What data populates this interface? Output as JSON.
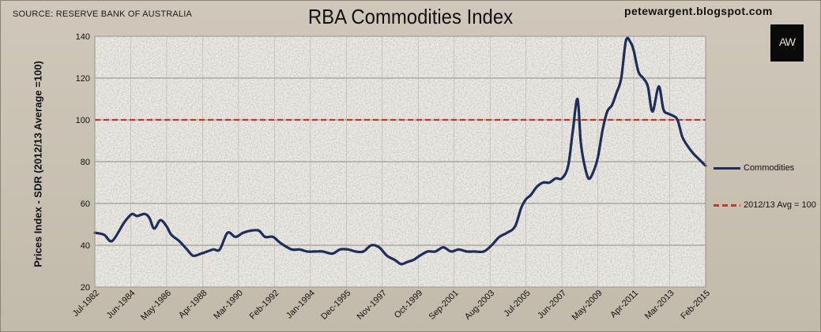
{
  "header": {
    "source": "SOURCE: RESERVE BANK OF AUSTRALIA",
    "title": "RBA Commodities Index",
    "blog": "petewargent.blogspot.com",
    "logo_text": "AW"
  },
  "colors": {
    "series": "#1f2d5a",
    "reference": "#c0392b",
    "gridline": "#8c8c8c"
  },
  "chart_data": {
    "type": "line",
    "title": "RBA Commodities Index",
    "ylabel": "Prices Index - SDR (2012/13 Average =100)",
    "xlabel": "",
    "ylim": [
      20,
      140
    ],
    "yticks": [
      20,
      40,
      60,
      80,
      100,
      120,
      140
    ],
    "xlim": [
      "1982-07",
      "2015-02"
    ],
    "xticks": [
      "Jul-1982",
      "Jun-1984",
      "May-1986",
      "Apr-1988",
      "Mar-1990",
      "Feb-1992",
      "Jan-1994",
      "Dec-1995",
      "Nov-1997",
      "Oct-1999",
      "Sep-2001",
      "Aug-2003",
      "Jul-2005",
      "Jun-2007",
      "May-2009",
      "Apr-2011",
      "Mar-2013",
      "Feb-2015"
    ],
    "grid": true,
    "legend_position": "right",
    "series": [
      {
        "name": "Commodities",
        "style": "solid",
        "x": [
          "1982-07",
          "1983-01",
          "1983-06",
          "1984-01",
          "1984-04",
          "1984-07",
          "1984-10",
          "1985-03",
          "1985-06",
          "1985-09",
          "1986-01",
          "1986-05",
          "1986-08",
          "1987-01",
          "1987-06",
          "1987-10",
          "1988-03",
          "1988-07",
          "1988-11",
          "1989-03",
          "1989-08",
          "1990-01",
          "1990-06",
          "1990-11",
          "1991-04",
          "1991-08",
          "1992-01",
          "1992-06",
          "1993-01",
          "1993-06",
          "1993-11",
          "1994-04",
          "1994-09",
          "1995-03",
          "1995-08",
          "1996-01",
          "1996-06",
          "1996-11",
          "1997-04",
          "1997-09",
          "1998-02",
          "1998-07",
          "1998-11",
          "1999-03",
          "1999-07",
          "1999-11",
          "2000-04",
          "2000-09",
          "2001-02",
          "2001-07",
          "2001-12",
          "2002-05",
          "2002-10",
          "2003-04",
          "2003-09",
          "2004-02",
          "2004-07",
          "2004-12",
          "2005-04",
          "2005-07",
          "2005-10",
          "2006-02",
          "2006-06",
          "2006-10",
          "2007-02",
          "2007-06",
          "2007-10",
          "2008-01",
          "2008-04",
          "2008-06",
          "2008-08",
          "2008-11",
          "2009-02",
          "2009-05",
          "2009-08",
          "2009-11",
          "2010-02",
          "2010-05",
          "2010-08",
          "2010-11",
          "2011-02",
          "2011-04",
          "2011-07",
          "2011-10",
          "2012-01",
          "2012-04",
          "2012-08",
          "2012-11",
          "2013-02",
          "2013-05",
          "2013-08",
          "2013-11",
          "2014-02",
          "2014-06",
          "2014-10",
          "2015-02"
        ],
        "y": [
          46,
          45,
          42,
          50,
          53,
          55,
          54,
          55,
          53,
          48,
          52,
          49,
          45,
          42,
          38,
          35,
          36,
          37,
          38,
          38,
          46,
          44,
          46,
          47,
          47,
          44,
          44,
          41,
          38,
          38,
          37,
          37,
          37,
          36,
          38,
          38,
          37,
          37,
          40,
          39,
          35,
          33,
          31,
          32,
          33,
          35,
          37,
          37,
          39,
          37,
          38,
          37,
          37,
          37,
          40,
          44,
          46,
          49,
          58,
          62,
          64,
          68,
          70,
          70,
          72,
          72,
          78,
          95,
          110,
          90,
          80,
          72,
          75,
          82,
          95,
          104,
          107,
          113,
          120,
          138,
          137,
          133,
          123,
          120,
          116,
          104,
          116,
          105,
          103,
          102,
          100,
          92,
          88,
          84,
          81,
          78
        ]
      },
      {
        "name": "2012/13 Avg = 100",
        "style": "dashed",
        "value": 100
      }
    ]
  }
}
